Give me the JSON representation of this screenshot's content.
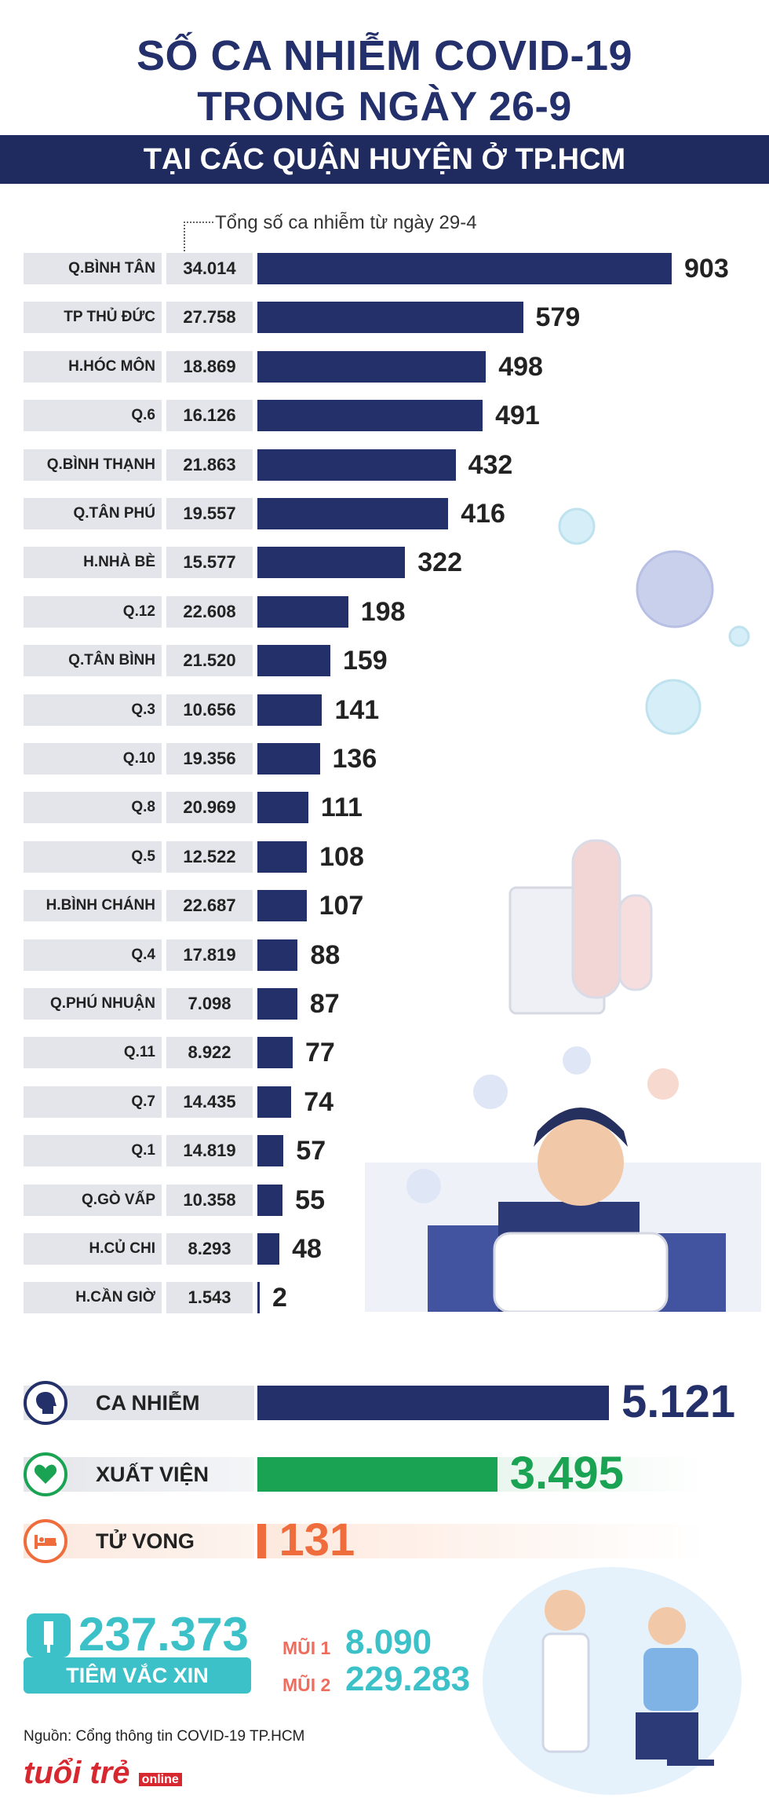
{
  "title_line1": "SỐ CA NHIỄM COVID-19",
  "title_line2": "TRONG NGÀY 26-9",
  "subtitle": "TẠI CÁC QUẬN HUYỆN Ở TP.HCM",
  "note": "Tổng số ca nhiễm từ ngày 29-4",
  "chart_data": {
    "type": "bar",
    "title": "SỐ CA NHIỄM COVID-19 TRONG NGÀY 26-9",
    "subtitle": "TẠI CÁC QUẬN HUYỆN Ở TP.HCM",
    "categories": [
      "Q.BÌNH TÂN",
      "TP THỦ ĐỨC",
      "H.HÓC MÔN",
      "Q.6",
      "Q.BÌNH THẠNH",
      "Q.TÂN PHÚ",
      "H.NHÀ BÈ",
      "Q.12",
      "Q.TÂN BÌNH",
      "Q.3",
      "Q.10",
      "Q.8",
      "Q.5",
      "H.BÌNH CHÁNH",
      "Q.4",
      "Q.PHÚ NHUẬN",
      "Q.11",
      "Q.7",
      "Q.1",
      "Q.GÒ VẤP",
      "H.CỦ CHI",
      "H.CẦN GIỜ"
    ],
    "totals": [
      "34.014",
      "27.758",
      "18.869",
      "16.126",
      "21.863",
      "19.557",
      "15.577",
      "22.608",
      "21.520",
      "10.656",
      "19.356",
      "20.969",
      "12.522",
      "22.687",
      "17.819",
      "7.098",
      "8.922",
      "14.435",
      "14.819",
      "10.358",
      "8.293",
      "1.543"
    ],
    "values": [
      903,
      579,
      498,
      491,
      432,
      416,
      322,
      198,
      159,
      141,
      136,
      111,
      108,
      107,
      88,
      87,
      77,
      74,
      57,
      55,
      48,
      2
    ],
    "xlim": [
      0,
      903
    ]
  },
  "summary": {
    "cases_label": "CA NHIỄM",
    "cases_value": "5.121",
    "recovered_label": "XUẤT VIỆN",
    "recovered_value": "3.495",
    "deaths_label": "TỬ VONG",
    "deaths_value": "131",
    "cases_color": "#24306a",
    "recovered_color": "#1aa352",
    "deaths_color": "#ef6d3c"
  },
  "vaccine": {
    "total": "237.373",
    "label": "TIÊM VẮC XIN",
    "dose1_label": "MŨI 1",
    "dose1_value": "8.090",
    "dose2_label": "MŨI 2",
    "dose2_value": "229.283"
  },
  "source": "Nguồn: Cổng thông tin COVID-19 TP.HCM",
  "logo": "tuổi trẻ",
  "logo_sub": "online"
}
